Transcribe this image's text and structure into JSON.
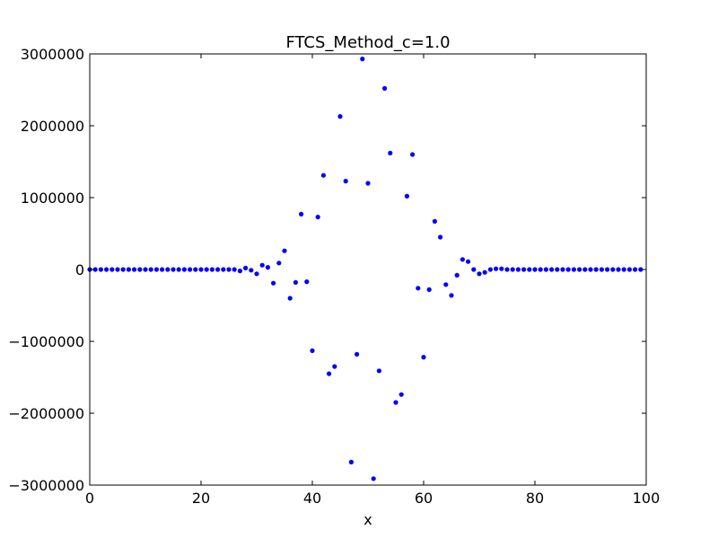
{
  "chart_data": {
    "type": "scatter",
    "title": "FTCS_Method_c=1.0",
    "xlabel": "x",
    "ylabel": "",
    "xlim": [
      0,
      100
    ],
    "ylim": [
      -3000000,
      3000000
    ],
    "x_ticks": [
      0,
      20,
      40,
      60,
      80,
      100
    ],
    "y_ticks": [
      -3000000,
      -2000000,
      -1000000,
      0,
      1000000,
      2000000,
      3000000
    ],
    "x_tick_labels": [
      "0",
      "20",
      "40",
      "60",
      "80",
      "100"
    ],
    "y_tick_labels": [
      "−3000000",
      "−2000000",
      "−1000000",
      "0",
      "1000000",
      "2000000",
      "3000000"
    ],
    "grid": false,
    "marker_color": "#0000ff",
    "x": [
      0,
      1,
      2,
      3,
      4,
      5,
      6,
      7,
      8,
      9,
      10,
      11,
      12,
      13,
      14,
      15,
      16,
      17,
      18,
      19,
      20,
      21,
      22,
      23,
      24,
      25,
      26,
      27,
      28,
      29,
      30,
      31,
      32,
      33,
      34,
      35,
      36,
      37,
      38,
      39,
      40,
      41,
      42,
      43,
      44,
      45,
      46,
      47,
      48,
      49,
      50,
      51,
      52,
      53,
      54,
      55,
      56,
      57,
      58,
      59,
      60,
      61,
      62,
      63,
      64,
      65,
      66,
      67,
      68,
      69,
      70,
      71,
      72,
      73,
      74,
      75,
      76,
      77,
      78,
      79,
      80,
      81,
      82,
      83,
      84,
      85,
      86,
      87,
      88,
      89,
      90,
      91,
      92,
      93,
      94,
      95,
      96,
      97,
      98,
      99
    ],
    "y": [
      0,
      0,
      0,
      0,
      0,
      0,
      0,
      0,
      0,
      0,
      0,
      0,
      0,
      0,
      0,
      0,
      0,
      0,
      0,
      0,
      0,
      0,
      0,
      0,
      0,
      0,
      0,
      -20000,
      20000,
      -10000,
      -60000,
      60000,
      30000,
      -190000,
      90000,
      260000,
      -400000,
      -180000,
      770000,
      -170000,
      -1130000,
      730000,
      1310000,
      -1450000,
      -1350000,
      2130000,
      1230000,
      -2680000,
      -1180000,
      2930000,
      1200000,
      -2910000,
      -1410000,
      2520000,
      1620000,
      -1850000,
      -1740000,
      1020000,
      1600000,
      -260000,
      -1220000,
      -280000,
      670000,
      450000,
      -210000,
      -360000,
      -80000,
      140000,
      110000,
      0,
      -60000,
      -40000,
      0,
      10000,
      10000,
      0,
      0,
      0,
      0,
      0,
      0,
      0,
      0,
      0,
      0,
      0,
      0,
      0,
      0,
      0,
      0,
      0,
      0,
      0,
      0,
      0,
      0,
      0,
      0,
      0
    ]
  }
}
